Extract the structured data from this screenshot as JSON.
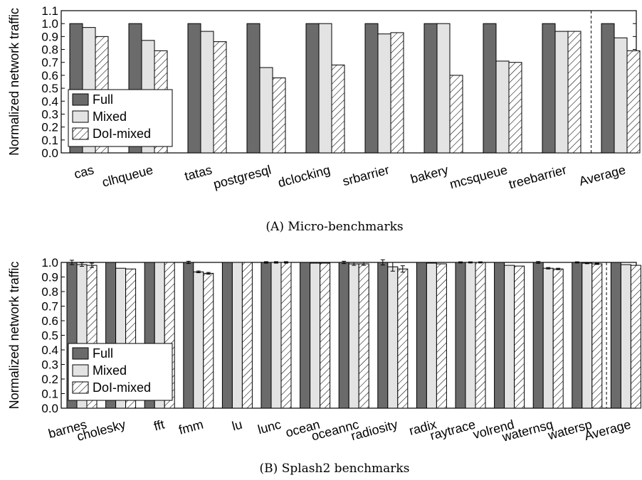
{
  "colors": {
    "Full": "#6b6b6b",
    "Mixed": "#e3e3e3",
    "DoI-mixed": "#ffffff"
  },
  "chart_data": [
    {
      "type": "bar",
      "caption": "(A) Micro-benchmarks",
      "ylabel": "Normalized network traffic",
      "ylim": [
        0,
        1.1
      ],
      "yticks": [
        "0.0",
        "0.1",
        "0.2",
        "0.3",
        "0.4",
        "0.5",
        "0.6",
        "0.7",
        "0.8",
        "0.9",
        "1.0",
        "1.1"
      ],
      "legend": [
        "Full",
        "Mixed",
        "DoI-mixed"
      ],
      "legend_position": "bottom-left",
      "categories": [
        "cas",
        "clhqueue",
        "tatas",
        "postgresql",
        "dclocking",
        "srbarrier",
        "bakery",
        "mcsqueue",
        "treebarrier",
        "Average"
      ],
      "series": [
        {
          "name": "Full",
          "values": [
            1.0,
            1.0,
            1.0,
            1.0,
            1.0,
            1.0,
            1.0,
            1.0,
            1.0,
            1.0
          ]
        },
        {
          "name": "Mixed",
          "values": [
            0.97,
            0.87,
            0.94,
            0.66,
            1.0,
            0.92,
            1.0,
            0.71,
            0.94,
            0.89
          ]
        },
        {
          "name": "DoI-mixed",
          "values": [
            0.9,
            0.79,
            0.86,
            0.58,
            0.68,
            0.93,
            0.6,
            0.7,
            0.94,
            0.79
          ]
        }
      ],
      "separator_before": "Average"
    },
    {
      "type": "bar",
      "caption": "(B) Splash2 benchmarks",
      "ylabel": "Normalized network traffic",
      "ylim": [
        0,
        1.0
      ],
      "yticks": [
        "0.0",
        "0.1",
        "0.2",
        "0.3",
        "0.4",
        "0.5",
        "0.6",
        "0.7",
        "0.8",
        "0.9",
        "1.0"
      ],
      "legend": [
        "Full",
        "Mixed",
        "DoI-mixed"
      ],
      "legend_position": "bottom-left",
      "categories": [
        "barnes",
        "cholesky",
        "fft",
        "fmm",
        "lu",
        "lunc",
        "ocean",
        "oceannc",
        "radiosity",
        "radix",
        "raytrace",
        "volrend",
        "waternsq",
        "watersp",
        "Average"
      ],
      "series": [
        {
          "name": "Full",
          "values": [
            1.0,
            1.0,
            1.0,
            1.0,
            1.0,
            1.0,
            1.0,
            1.0,
            1.0,
            1.0,
            1.0,
            1.0,
            1.0,
            1.0,
            1.0
          ]
        },
        {
          "name": "Mixed",
          "values": [
            0.985,
            0.96,
            1.0,
            0.935,
            1.0,
            1.0,
            0.995,
            0.99,
            0.97,
            0.995,
            1.0,
            0.98,
            0.96,
            0.995,
            0.985
          ]
        },
        {
          "name": "DoI-mixed",
          "values": [
            0.98,
            0.955,
            1.0,
            0.925,
            1.0,
            1.0,
            0.995,
            0.99,
            0.955,
            0.99,
            1.0,
            0.975,
            0.955,
            0.99,
            0.98
          ]
        }
      ],
      "error_bars": {
        "Full": [
          0.015,
          0,
          0,
          0.008,
          0,
          0.005,
          0,
          0.008,
          0.018,
          0,
          0.004,
          0,
          0.006,
          0.004,
          0
        ],
        "Mixed": [
          0.012,
          0,
          0,
          0.006,
          0,
          0.005,
          0,
          0.01,
          0.03,
          0,
          0.004,
          0,
          0.005,
          0.004,
          0
        ],
        "DoI-mixed": [
          0.015,
          0,
          0,
          0.006,
          0,
          0.005,
          0,
          0.01,
          0.022,
          0,
          0.004,
          0,
          0.005,
          0.004,
          0
        ]
      },
      "separator_before": "Average"
    }
  ]
}
